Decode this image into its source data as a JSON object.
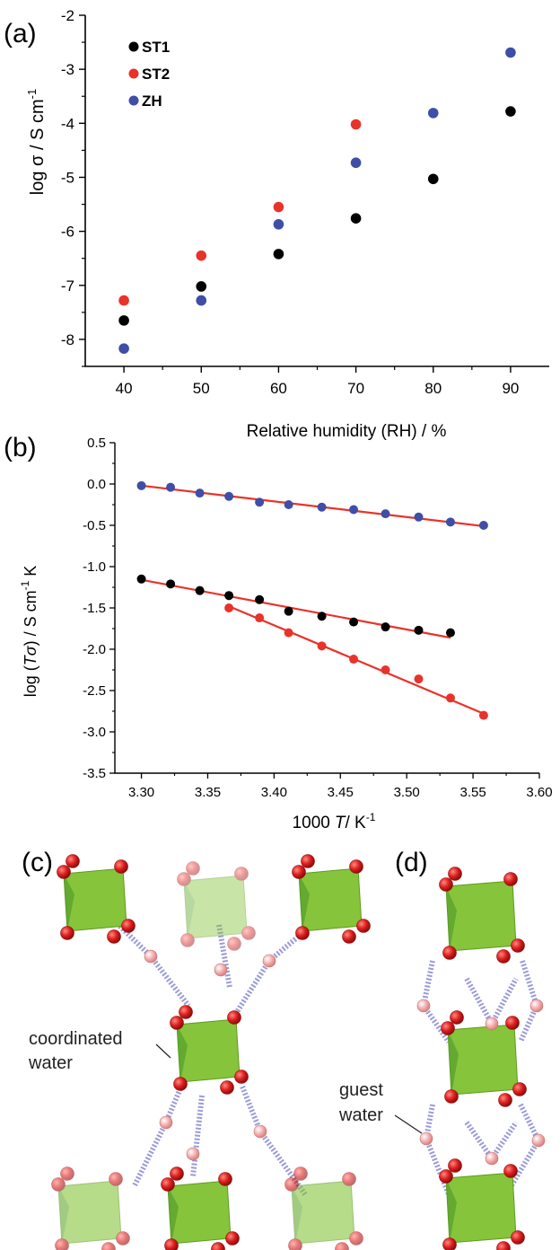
{
  "panels": {
    "a": "(a)",
    "b": "(b)",
    "c": "(c)",
    "d": "(d)"
  },
  "annotations": {
    "coordinated_line1": "coordinated",
    "coordinated_line2": "water",
    "guest_line1": "guest",
    "guest_line2": "water"
  },
  "colors": {
    "ST1": "#000000",
    "ST2": "#e8332a",
    "ZH": "#3f4ea6",
    "fit": "#e8332a",
    "octahedron": "#86c43b",
    "oxygen": "#dd1f1f",
    "water_h": "#f3aaaa",
    "hbond": "#8a8ad0"
  },
  "chart_data": [
    {
      "type": "scatter",
      "panel": "a",
      "title": "",
      "xlabel": "Relative humidity (RH) / %",
      "ylabel": "log σ / S cm",
      "ylabel_sup": "-1",
      "xlim": [
        35,
        95
      ],
      "ylim": [
        -8.5,
        -2
      ],
      "xticks": [
        40,
        50,
        60,
        70,
        80,
        90
      ],
      "yticks": [
        -2,
        -3,
        -4,
        -5,
        -6,
        -7,
        -8
      ],
      "ytick_labels": [
        "-2",
        "-3",
        "-4",
        "-5",
        "-6",
        "-7",
        "-8"
      ],
      "legend_position": "top-left",
      "grid": false,
      "series": [
        {
          "name": "ST1",
          "color": "#000000",
          "x": [
            40,
            50,
            60,
            70,
            80,
            90
          ],
          "y": [
            -7.65,
            -7.02,
            -6.42,
            -5.76,
            -5.03,
            -3.78
          ]
        },
        {
          "name": "ST2",
          "color": "#e8332a",
          "x": [
            40,
            50,
            60,
            70
          ],
          "y": [
            -7.28,
            -6.45,
            -5.55,
            -4.02
          ]
        },
        {
          "name": "ZH",
          "color": "#3f4ea6",
          "x": [
            40,
            50,
            60,
            70,
            80,
            90
          ],
          "y": [
            -8.17,
            -7.28,
            -5.87,
            -4.73,
            -3.81,
            -2.69
          ]
        }
      ]
    },
    {
      "type": "scatter",
      "panel": "b",
      "title": "",
      "xlabel_num": "1000",
      "xlabel_var": "T",
      "xlabel_unit": "/ K",
      "xlabel_sup": "-1",
      "ylabel_pre": "log (",
      "ylabel_var": "Tσ",
      "ylabel_post": ") / S cm",
      "ylabel_sup": "-1",
      "ylabel_end": " K",
      "xlim": [
        3.28,
        3.6
      ],
      "ylim": [
        -3.5,
        0.5
      ],
      "xticks": [
        3.3,
        3.35,
        3.4,
        3.45,
        3.5,
        3.55,
        3.6
      ],
      "xtick_labels": [
        "3.30",
        "3.35",
        "3.40",
        "3.45",
        "3.50",
        "3.55",
        "3.60"
      ],
      "yticks": [
        0.5,
        0.0,
        -0.5,
        -1.0,
        -1.5,
        -2.0,
        -2.5,
        -3.0,
        -3.5
      ],
      "ytick_labels": [
        "0.5",
        "0.0",
        "-0.5",
        "-1.0",
        "-1.5",
        "-2.0",
        "-2.5",
        "-3.0",
        "-3.5"
      ],
      "grid": false,
      "series": [
        {
          "color": "#3f4ea6",
          "x": [
            3.3,
            3.322,
            3.344,
            3.366,
            3.389,
            3.411,
            3.436,
            3.46,
            3.484,
            3.509,
            3.533,
            3.558
          ],
          "y": [
            -0.02,
            -0.04,
            -0.11,
            -0.15,
            -0.22,
            -0.25,
            -0.28,
            -0.31,
            -0.36,
            -0.4,
            -0.46,
            -0.5
          ]
        },
        {
          "color": "#000000",
          "x": [
            3.3,
            3.322,
            3.344,
            3.366,
            3.389,
            3.411,
            3.436,
            3.46,
            3.484,
            3.509,
            3.533
          ],
          "y": [
            -1.15,
            -1.21,
            -1.29,
            -1.35,
            -1.4,
            -1.54,
            -1.6,
            -1.67,
            -1.73,
            -1.77,
            -1.8
          ]
        },
        {
          "color": "#e8332a",
          "x": [
            3.366,
            3.389,
            3.411,
            3.436,
            3.46,
            3.484,
            3.509,
            3.533,
            3.558
          ],
          "y": [
            -1.5,
            -1.62,
            -1.8,
            -1.96,
            -2.12,
            -2.25,
            -2.36,
            -2.59,
            -2.8
          ]
        }
      ],
      "fits": [
        {
          "color": "#e8332a",
          "x": [
            3.3,
            3.558
          ],
          "y": [
            -0.02,
            -0.51
          ]
        },
        {
          "color": "#e8332a",
          "x": [
            3.3,
            3.533
          ],
          "y": [
            -1.16,
            -1.86
          ]
        },
        {
          "color": "#e8332a",
          "x": [
            3.366,
            3.558
          ],
          "y": [
            -1.48,
            -2.78
          ]
        }
      ]
    }
  ]
}
